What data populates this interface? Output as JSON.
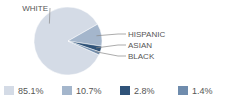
{
  "chart_data": {
    "type": "pie",
    "categories": [
      "WHITE",
      "HISPANIC",
      "ASIAN",
      "BLACK"
    ],
    "values": [
      85.1,
      10.7,
      2.8,
      1.4
    ],
    "value_labels": [
      "85.1%",
      "10.7%",
      "2.8%",
      "1.4%"
    ],
    "colors": [
      "#d4dbe6",
      "#a4b6cc",
      "#2f5379",
      "#6f8cad"
    ],
    "legend": "bottom"
  }
}
